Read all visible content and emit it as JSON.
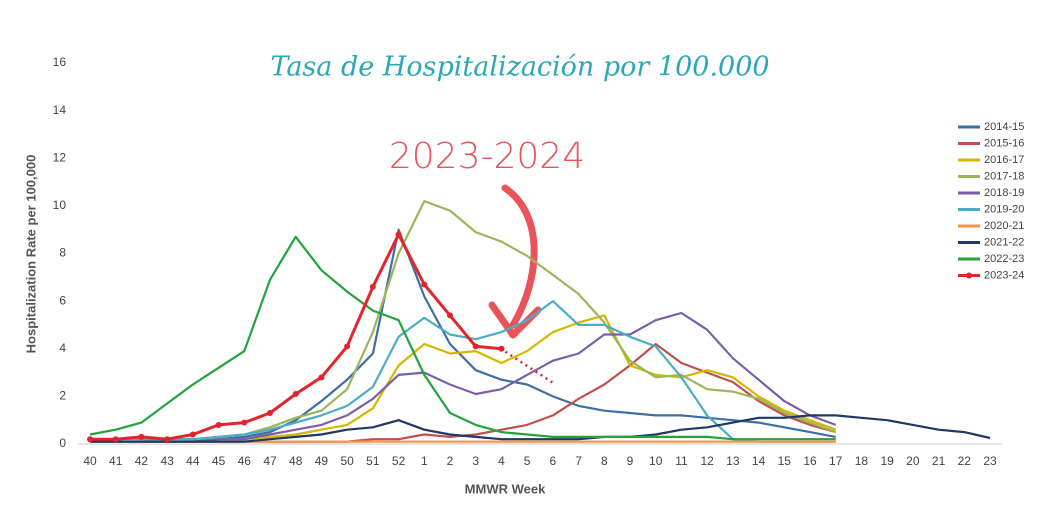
{
  "chart_data": {
    "type": "line",
    "title": "Tasa de Hospitalización por 100.000",
    "annotation": "2023-2024",
    "x_label": "MMWR Week",
    "y_label": "Hospitalization Rate per 100,000",
    "categories": [
      "40",
      "41",
      "42",
      "43",
      "44",
      "45",
      "46",
      "47",
      "48",
      "49",
      "50",
      "51",
      "52",
      "1",
      "2",
      "3",
      "4",
      "5",
      "6",
      "7",
      "8",
      "9",
      "10",
      "11",
      "12",
      "13",
      "14",
      "15",
      "16",
      "17",
      "18",
      "19",
      "20",
      "21",
      "22",
      "23"
    ],
    "ylim": [
      0,
      16
    ],
    "yticks": [
      0,
      2,
      4,
      6,
      8,
      10,
      12,
      14,
      16
    ],
    "grid": false,
    "legend": "right",
    "series": [
      {
        "name": "2014-15",
        "color": "#3d6fa5",
        "values": [
          0.1,
          0.1,
          0.1,
          0.1,
          0.1,
          0.2,
          0.3,
          0.5,
          1,
          1.8,
          2.7,
          3.8,
          9,
          6.2,
          4.2,
          3.1,
          2.7,
          2.5,
          2,
          1.6,
          1.4,
          1.3,
          1.2,
          1.2,
          1.1,
          1,
          0.9,
          0.7,
          0.5,
          0.3,
          null,
          null,
          null,
          null,
          null,
          null
        ]
      },
      {
        "name": "2015-16",
        "color": "#c0504d",
        "values": [
          0.1,
          0.1,
          0.1,
          0.1,
          0.1,
          0.1,
          0.1,
          0.1,
          0.1,
          0.1,
          0.1,
          0.2,
          0.2,
          0.4,
          0.3,
          0.4,
          0.6,
          0.8,
          1.2,
          1.9,
          2.5,
          3.3,
          4.2,
          3.4,
          3,
          2.6,
          1.8,
          1.2,
          0.8,
          0.5,
          null,
          null,
          null,
          null,
          null,
          null
        ]
      },
      {
        "name": "2016-17",
        "color": "#d6b600",
        "values": [
          0.1,
          0.1,
          0.1,
          0.1,
          0.1,
          0.2,
          0.2,
          0.3,
          0.4,
          0.6,
          0.8,
          1.5,
          3.3,
          4.2,
          3.8,
          3.9,
          3.4,
          3.9,
          4.7,
          5.1,
          5.4,
          3.3,
          2.9,
          2.8,
          3.1,
          2.8,
          2,
          1.4,
          1,
          0.6,
          null,
          null,
          null,
          null,
          null,
          null
        ]
      },
      {
        "name": "2017-18",
        "color": "#9bb55a",
        "values": [
          0.1,
          0.1,
          0.1,
          0.2,
          0.2,
          0.3,
          0.4,
          0.7,
          1.1,
          1.4,
          2.3,
          4.7,
          8,
          10.2,
          9.8,
          8.9,
          8.5,
          7.9,
          7.1,
          6.3,
          5.1,
          3.5,
          2.8,
          2.9,
          2.3,
          2.2,
          1.9,
          1.3,
          0.9,
          0.5,
          null,
          null,
          null,
          null,
          null,
          null
        ]
      },
      {
        "name": "2018-19",
        "color": "#7a5ea8",
        "values": [
          0.1,
          0.1,
          0.1,
          0.1,
          0.1,
          0.2,
          0.2,
          0.4,
          0.6,
          0.8,
          1.2,
          1.9,
          2.9,
          3,
          2.5,
          2.1,
          2.3,
          2.9,
          3.5,
          3.8,
          4.6,
          4.6,
          5.2,
          5.5,
          4.8,
          3.6,
          2.7,
          1.8,
          1.2,
          0.8,
          null,
          null,
          null,
          null,
          null,
          null
        ]
      },
      {
        "name": "2019-20",
        "color": "#4bacc6",
        "values": [
          0.2,
          0.2,
          0.2,
          0.2,
          0.2,
          0.3,
          0.4,
          0.6,
          0.9,
          1.2,
          1.6,
          2.4,
          4.5,
          5.3,
          4.6,
          4.4,
          4.7,
          5.2,
          6,
          5,
          5,
          4.5,
          4.1,
          2.8,
          1.2,
          0.2,
          0.1,
          0.1,
          0.1,
          0.1,
          null,
          null,
          null,
          null,
          null,
          null
        ]
      },
      {
        "name": "2020-21",
        "color": "#f79646",
        "values": [
          0.1,
          0.1,
          0.1,
          0.1,
          0.1,
          0.1,
          0.1,
          0.1,
          0.1,
          0.1,
          0.1,
          0.1,
          0.1,
          0.1,
          0.1,
          0.1,
          0.1,
          0.1,
          0.1,
          0.1,
          0.1,
          0.1,
          0.1,
          0.1,
          0.1,
          0.1,
          0.1,
          0.1,
          0.1,
          0.1,
          null,
          null,
          null,
          null,
          null,
          null
        ]
      },
      {
        "name": "2021-22",
        "color": "#1f3864",
        "values": [
          0.1,
          0.1,
          0.1,
          0.1,
          0.1,
          0.1,
          0.1,
          0.2,
          0.3,
          0.4,
          0.6,
          0.7,
          1,
          0.6,
          0.4,
          0.3,
          0.2,
          0.2,
          0.2,
          0.2,
          0.3,
          0.3,
          0.4,
          0.6,
          0.7,
          0.9,
          1.1,
          1.1,
          1.2,
          1.2,
          1.1,
          1,
          0.8,
          0.6,
          0.5,
          0.25
        ]
      },
      {
        "name": "2022-23",
        "color": "#23a33c",
        "values": [
          0.4,
          0.6,
          0.9,
          1.7,
          2.5,
          3.2,
          3.9,
          6.9,
          8.7,
          7.3,
          6.4,
          5.6,
          5.2,
          2.9,
          1.3,
          0.8,
          0.5,
          0.4,
          0.3,
          0.3,
          0.3,
          0.3,
          0.3,
          0.3,
          0.3,
          0.2,
          0.2,
          0.2,
          0.2,
          0.2,
          null,
          null,
          null,
          null,
          null,
          null
        ]
      },
      {
        "name": "2023-24",
        "color": "#e3242b",
        "markers": true,
        "values": [
          0.2,
          0.2,
          0.3,
          0.2,
          0.4,
          0.8,
          0.9,
          1.3,
          2.1,
          2.8,
          4.1,
          6.6,
          8.8,
          6.7,
          5.4,
          4.1,
          4,
          null,
          null,
          null,
          null,
          null,
          null,
          null,
          null,
          null,
          null,
          null,
          null,
          null,
          null,
          null,
          null,
          null,
          null,
          null
        ]
      }
    ]
  }
}
